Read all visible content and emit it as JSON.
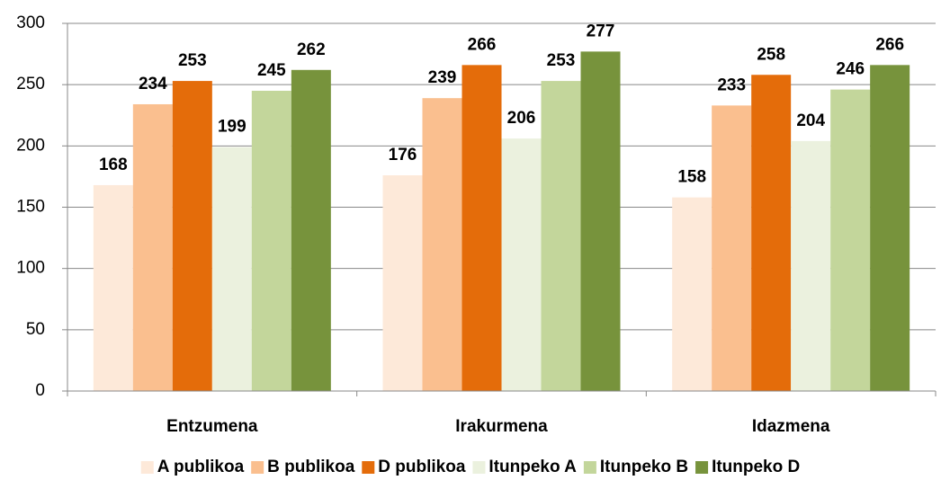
{
  "chart_data": {
    "type": "bar",
    "categories": [
      "Entzumena",
      "Irakurmena",
      "Idazmena"
    ],
    "series": [
      {
        "name": "A publikoa",
        "color": "#fde9d9",
        "values": [
          168,
          176,
          158
        ]
      },
      {
        "name": "B publikoa",
        "color": "#fabf8f",
        "values": [
          234,
          239,
          233
        ]
      },
      {
        "name": "D publikoa",
        "color": "#e46c0a",
        "values": [
          253,
          266,
          258
        ]
      },
      {
        "name": "Itunpeko A",
        "color": "#ebf1de",
        "values": [
          199,
          206,
          204
        ]
      },
      {
        "name": "Itunpeko B",
        "color": "#c3d69b",
        "values": [
          245,
          253,
          246
        ]
      },
      {
        "name": "Itunpeko D",
        "color": "#77933c",
        "values": [
          262,
          277,
          266
        ]
      }
    ],
    "ylim": [
      0,
      300
    ],
    "yticks": [
      0,
      50,
      100,
      150,
      200,
      250,
      300
    ],
    "grid": true,
    "legend": "bottom"
  }
}
